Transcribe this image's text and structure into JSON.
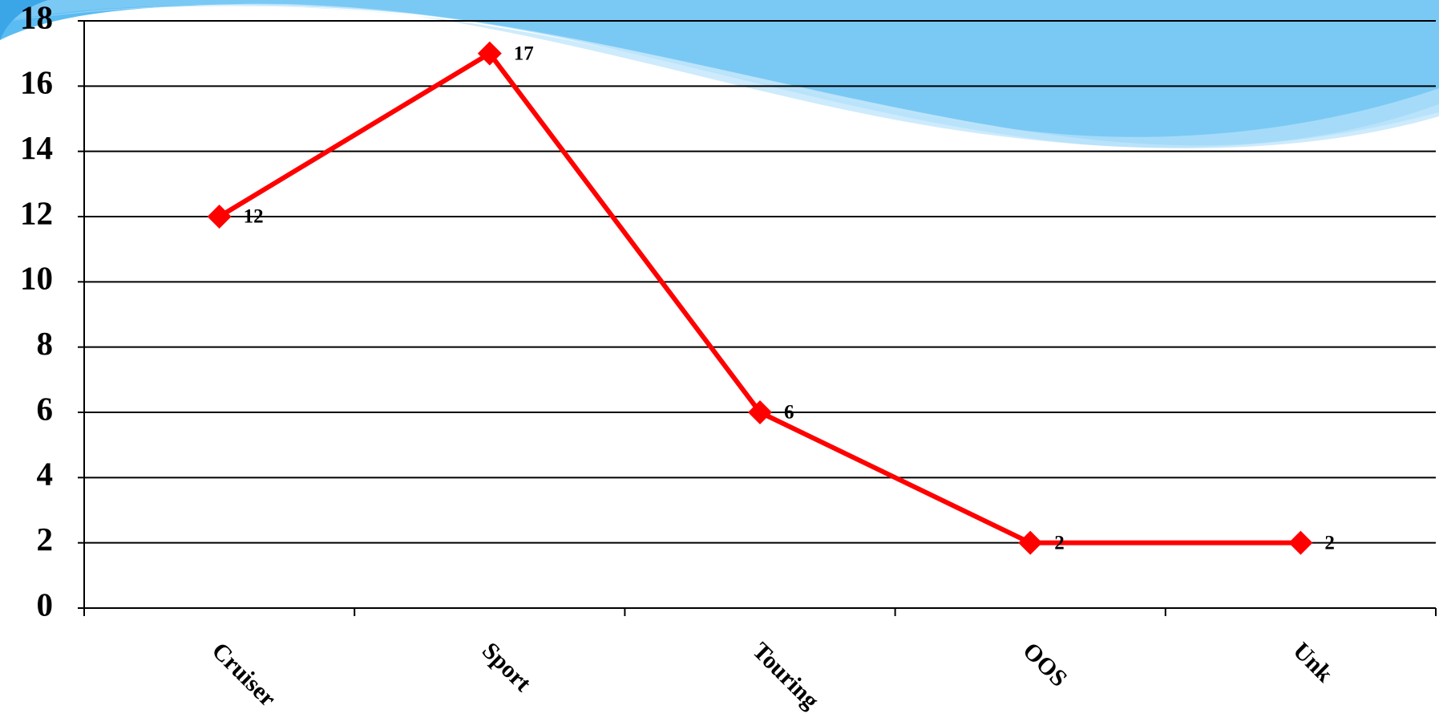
{
  "chart_data": {
    "type": "line",
    "categories": [
      "Cruiser",
      "Sport",
      "Touring",
      "OOS",
      "Unk"
    ],
    "values": [
      12,
      17,
      6,
      2,
      2
    ],
    "color": "#ff0000",
    "ylim": [
      0,
      18
    ],
    "yticks": [
      0,
      2,
      4,
      6,
      8,
      10,
      12,
      14,
      16,
      18
    ],
    "grid": true
  }
}
